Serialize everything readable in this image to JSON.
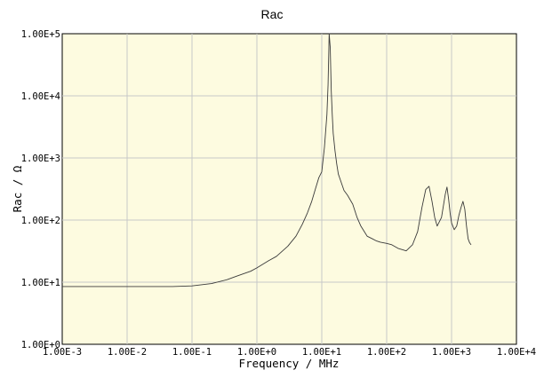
{
  "chart_data": {
    "type": "line",
    "title": "Rac",
    "xlabel": "Frequency / MHz",
    "ylabel": "Rac / Ω",
    "x_scale": "log",
    "y_scale": "log",
    "xlim": [
      0.001,
      10000
    ],
    "ylim": [
      1,
      100000
    ],
    "grid": true,
    "x_ticks": [
      "1.00E-3",
      "1.00E-2",
      "1.00E-1",
      "1.00E+0",
      "1.00E+1",
      "1.00E+2",
      "1.00E+3",
      "1.00E+4"
    ],
    "y_ticks": [
      "1.00E+0",
      "1.00E+1",
      "1.00E+2",
      "1.00E+3",
      "1.00E+4",
      "1.00E+5"
    ],
    "colors": {
      "plot_bg": "#fdfbe0",
      "grid": "#c8c8c8",
      "line": "#3a3a3a"
    },
    "series": [
      {
        "x": [
          0.001,
          0.01,
          0.05,
          0.1,
          0.2,
          0.35,
          0.5,
          0.8,
          1.0,
          1.5,
          2.0,
          3.0,
          4.0,
          5.0,
          6.0,
          7.0,
          8.0,
          9.0,
          10.0,
          11.0,
          12.0,
          12.5,
          13.0,
          13.5,
          14.0,
          14.5,
          15.0,
          16.0,
          17.0,
          18.0,
          20.0,
          22.0,
          25.0,
          30.0,
          35.0,
          40.0,
          50.0,
          60.0,
          70.0,
          80.0,
          100.0,
          120.0,
          150.0,
          200.0,
          250.0,
          300.0,
          350.0,
          400.0,
          450.0,
          500.0,
          550.0,
          600.0,
          700.0,
          800.0,
          850.0,
          900.0,
          950.0,
          1000.0,
          1100.0,
          1200.0,
          1300.0,
          1400.0,
          1500.0,
          1600.0,
          1700.0,
          1800.0,
          1900.0,
          2000.0
        ],
        "y": [
          8.5,
          8.5,
          8.5,
          8.7,
          9.5,
          11,
          12.6,
          15,
          17,
          22,
          26,
          38,
          55,
          85,
          130,
          200,
          320,
          480,
          600,
          1500,
          5000,
          15000,
          100000,
          60000,
          12000,
          5000,
          2500,
          1300,
          800,
          550,
          400,
          300,
          250,
          180,
          110,
          80,
          55,
          50,
          46,
          44,
          42,
          40,
          35,
          32,
          40,
          65,
          160,
          310,
          350,
          200,
          110,
          80,
          110,
          260,
          340,
          220,
          130,
          90,
          70,
          80,
          120,
          160,
          200,
          150,
          80,
          50,
          43,
          40
        ]
      }
    ]
  }
}
